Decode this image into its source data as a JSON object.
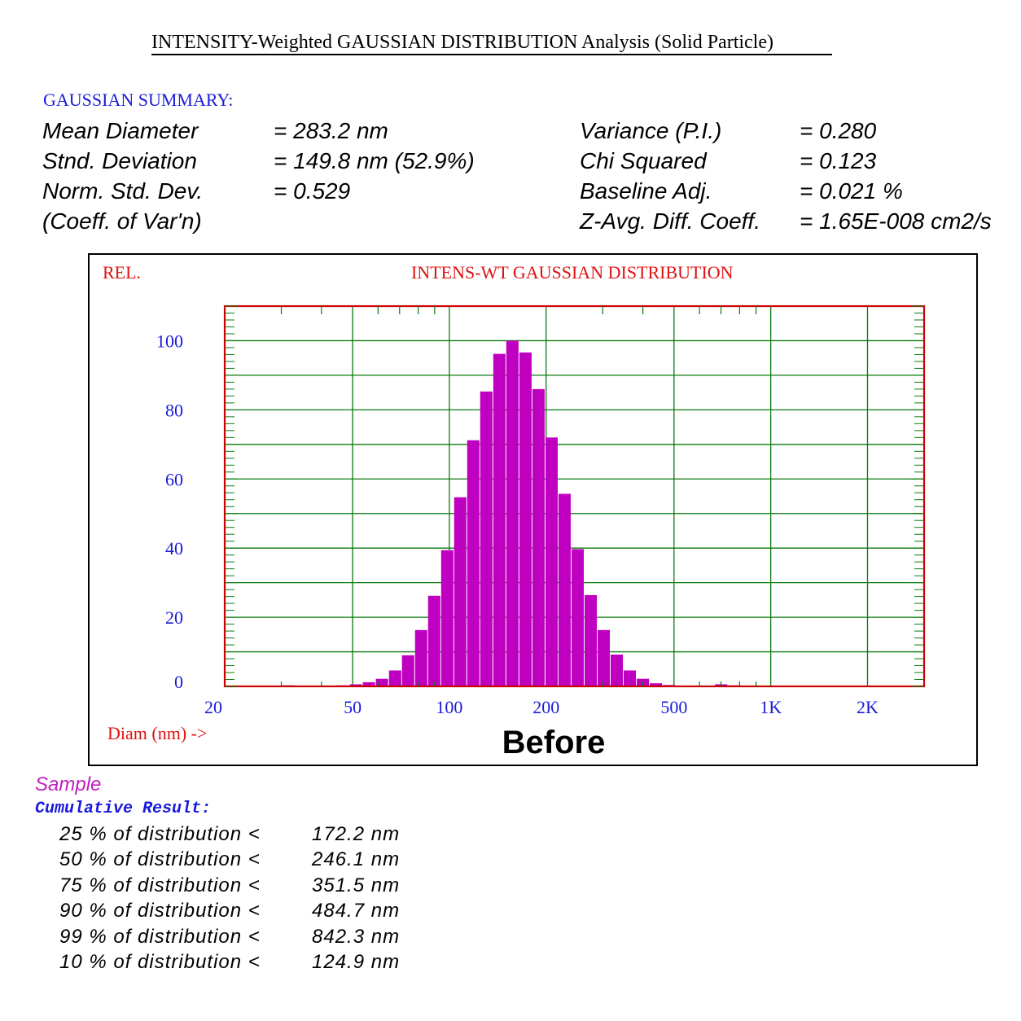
{
  "title": "INTENSITY-Weighted GAUSSIAN DISTRIBUTION Analysis (Solid Particle)",
  "summary": {
    "header": "GAUSSIAN SUMMARY:",
    "left": [
      {
        "label": "Mean Diameter",
        "value": "= 283.2  nm"
      },
      {
        "label": "Stnd. Deviation",
        "value": "= 149.8  nm (52.9%)"
      },
      {
        "label": "Norm. Std. Dev.",
        "value": "= 0.529"
      },
      {
        "label": "(Coeff.  of Var'n)",
        "value": ""
      }
    ],
    "right": [
      {
        "label": "Variance (P.I.)",
        "value": "= 0.280"
      },
      {
        "label": "Chi Squared",
        "value": "= 0.123"
      },
      {
        "label": "Baseline Adj.",
        "value": "= 0.021 %"
      },
      {
        "label": "Z-Avg. Diff. Coeff.",
        "value": "= 1.65E-008 cm2/s"
      }
    ]
  },
  "colors": {
    "bar": "#c000c0",
    "frame": "#cc0000",
    "grid": "#0b7a0b",
    "tick_label": "#1a1ad8",
    "caption": "#e01010"
  },
  "chart_data": {
    "type": "bar",
    "title": "INTENS-WT GAUSSIAN DISTRIBUTION",
    "ylabel": "REL.",
    "xlabel": "Diam (nm) ->",
    "annotation": "Before",
    "x_scale": "log",
    "xlim": [
      20,
      3000
    ],
    "ylim": [
      0,
      110
    ],
    "x_ticks": [
      {
        "value": 20,
        "label": "20"
      },
      {
        "value": 50,
        "label": "50"
      },
      {
        "value": 100,
        "label": "100"
      },
      {
        "value": 200,
        "label": "200"
      },
      {
        "value": 500,
        "label": "500"
      },
      {
        "value": 1000,
        "label": "1K"
      },
      {
        "value": 2000,
        "label": "2K"
      }
    ],
    "y_ticks": [
      0,
      20,
      40,
      60,
      80,
      100
    ],
    "grid": true,
    "bins_x": [
      31.6,
      46.7,
      51.2,
      56.2,
      61.7,
      67.8,
      74.4,
      81.7,
      89.7,
      98.5,
      108.1,
      118.7,
      130.3,
      143.1,
      157.1,
      172.5,
      189.4,
      208.0,
      228.3,
      250.7,
      275.3,
      302.2,
      331.8,
      364.3,
      400.0,
      439.2,
      482.2,
      529.4,
      581.3,
      638.2,
      700.7,
      769.3,
      844.7,
      927.4,
      1018.2,
      1118.0,
      1227.5,
      1347.7,
      1479.7,
      1624.6,
      1783.7,
      1958.4,
      2150.2
    ],
    "values": [
      0.3,
      0.3,
      0.6,
      1.2,
      2.2,
      4.6,
      9.0,
      16.3,
      26.2,
      39.4,
      54.7,
      71.2,
      85.3,
      96.2,
      100.0,
      96.6,
      86.0,
      72.0,
      55.7,
      39.7,
      26.4,
      16.3,
      9.2,
      4.6,
      2.2,
      0.9,
      0.4,
      0.2,
      0.2,
      0.1,
      0.6,
      0.3,
      0.2,
      0.2,
      0.1,
      0.1,
      0.1,
      0.1,
      0.1,
      0.1,
      0.1,
      0.1,
      0.1
    ]
  },
  "results": {
    "sample_label": "Sample",
    "cumulative_header": "Cumulative Result:",
    "rows": [
      {
        "label": "25 % of distribution <",
        "value": "172.2 nm"
      },
      {
        "label": "50 % of distribution <",
        "value": "246.1 nm"
      },
      {
        "label": "75 % of distribution <",
        "value": "351.5 nm"
      },
      {
        "label": "90 % of distribution <",
        "value": "484.7 nm"
      },
      {
        "label": "99 % of distribution <",
        "value": "842.3 nm"
      },
      {
        "label": "10 % of distribution <",
        "value": "124.9 nm"
      }
    ]
  }
}
